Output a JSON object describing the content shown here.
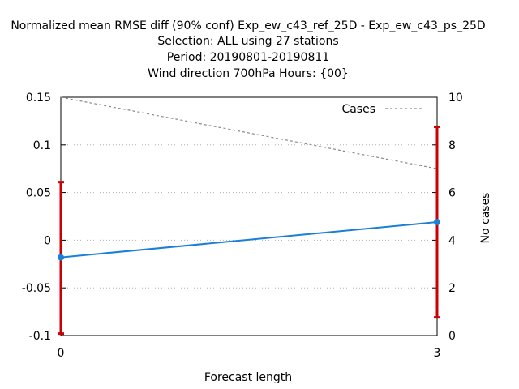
{
  "chart_data": {
    "type": "line",
    "title_lines": [
      "Normalized mean RMSE diff (90% conf) Exp_ew_c43_ref_25D - Exp_ew_c43_ps_25D",
      "Selection: ALL using    27 stations",
      "Period: 20190801-20190811",
      "Wind direction 700hPa   Hours: {00}"
    ],
    "xlabel": "Forecast length",
    "ylabel_right": "No cases",
    "x": [
      0,
      3
    ],
    "x_ticks": [
      "0",
      "3"
    ],
    "xlim": [
      0,
      3
    ],
    "ylim_left": [
      -0.1,
      0.15
    ],
    "y_ticks_left": [
      "-0.1",
      "-0.05",
      "0",
      "0.05",
      "0.1",
      "0.15"
    ],
    "ylim_right": [
      0,
      10
    ],
    "y_ticks_right": [
      "0",
      "2",
      "4",
      "6",
      "8",
      "10"
    ],
    "grid": "horizontal dotted",
    "legend_position": "top-right",
    "series": [
      {
        "name": "",
        "axis": "left",
        "values": [
          -0.018,
          0.019
        ],
        "error_low": [
          -0.098,
          -0.081
        ],
        "error_high": [
          0.061,
          0.119
        ],
        "color": "#1a7fd6",
        "error_color": "#cc0000"
      },
      {
        "name": "Cases",
        "axis": "right",
        "values": [
          10,
          7
        ],
        "color": "#888888",
        "dashed": true
      }
    ]
  }
}
